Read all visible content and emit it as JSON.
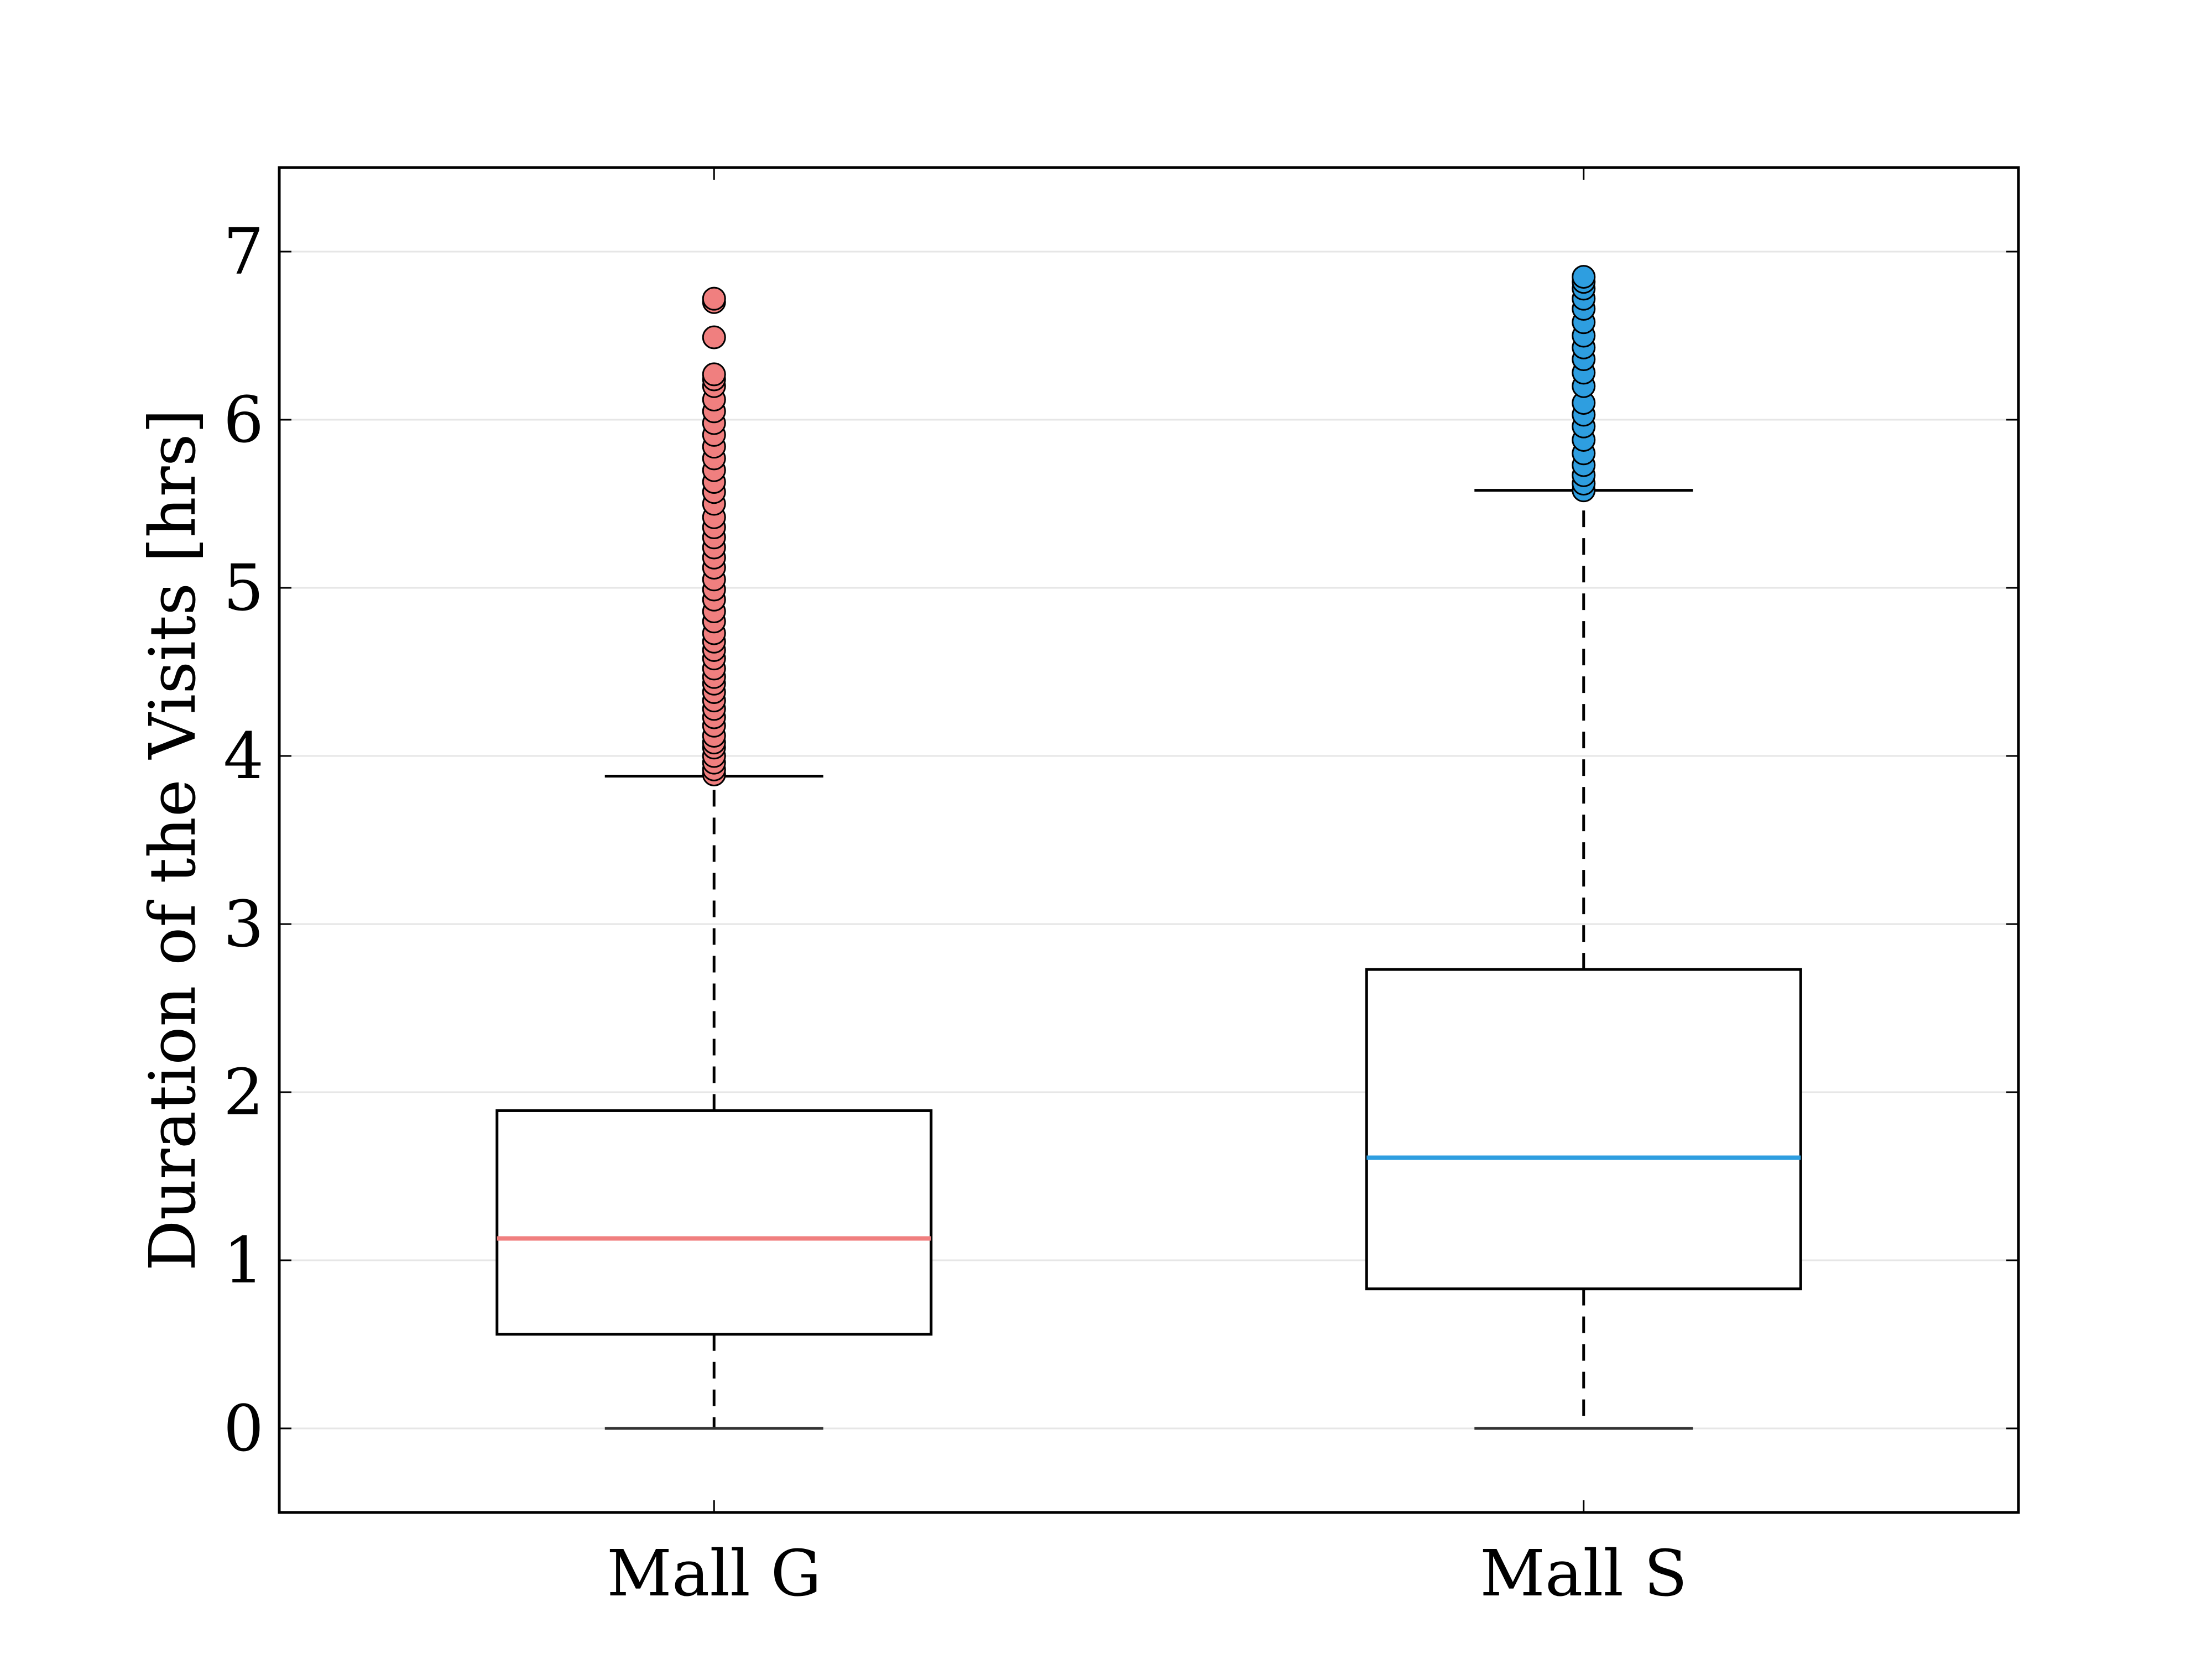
{
  "chart_data": {
    "type": "box",
    "title": "",
    "xlabel": "",
    "ylabel": "Duration of the Visits [hrs]",
    "ylim": [
      -0.5,
      7.5
    ],
    "yticks": [
      "0",
      "1",
      "2",
      "3",
      "4",
      "5",
      "6",
      "7"
    ],
    "grid": "y",
    "categories": [
      "Mall G",
      "Mall S"
    ],
    "boxes": [
      {
        "category": "Mall G",
        "color": "#f07f7f",
        "whisker_low": 0.0,
        "q1": 0.56,
        "median": 1.13,
        "q3": 1.89,
        "whisker_high": 3.88,
        "outliers": [
          3.89,
          3.92,
          3.96,
          4.0,
          4.05,
          4.08,
          4.12,
          4.18,
          4.23,
          4.28,
          4.33,
          4.38,
          4.43,
          4.47,
          4.52,
          4.58,
          4.63,
          4.68,
          4.73,
          4.8,
          4.86,
          4.93,
          4.99,
          5.05,
          5.12,
          5.18,
          5.24,
          5.3,
          5.36,
          5.42,
          5.5,
          5.57,
          5.63,
          5.7,
          5.77,
          5.84,
          5.91,
          5.98,
          6.05,
          6.12,
          6.2,
          6.24,
          6.27,
          6.49,
          6.7,
          6.72
        ]
      },
      {
        "category": "Mall S",
        "color": "#2e9ee0",
        "whisker_low": 0.0,
        "q1": 0.83,
        "median": 1.61,
        "q3": 2.73,
        "whisker_high": 5.58,
        "outliers": [
          5.58,
          5.62,
          5.67,
          5.73,
          5.8,
          5.88,
          5.96,
          6.03,
          6.1,
          6.2,
          6.28,
          6.36,
          6.43,
          6.5,
          6.58,
          6.66,
          6.72,
          6.78,
          6.82,
          6.85
        ]
      }
    ]
  }
}
